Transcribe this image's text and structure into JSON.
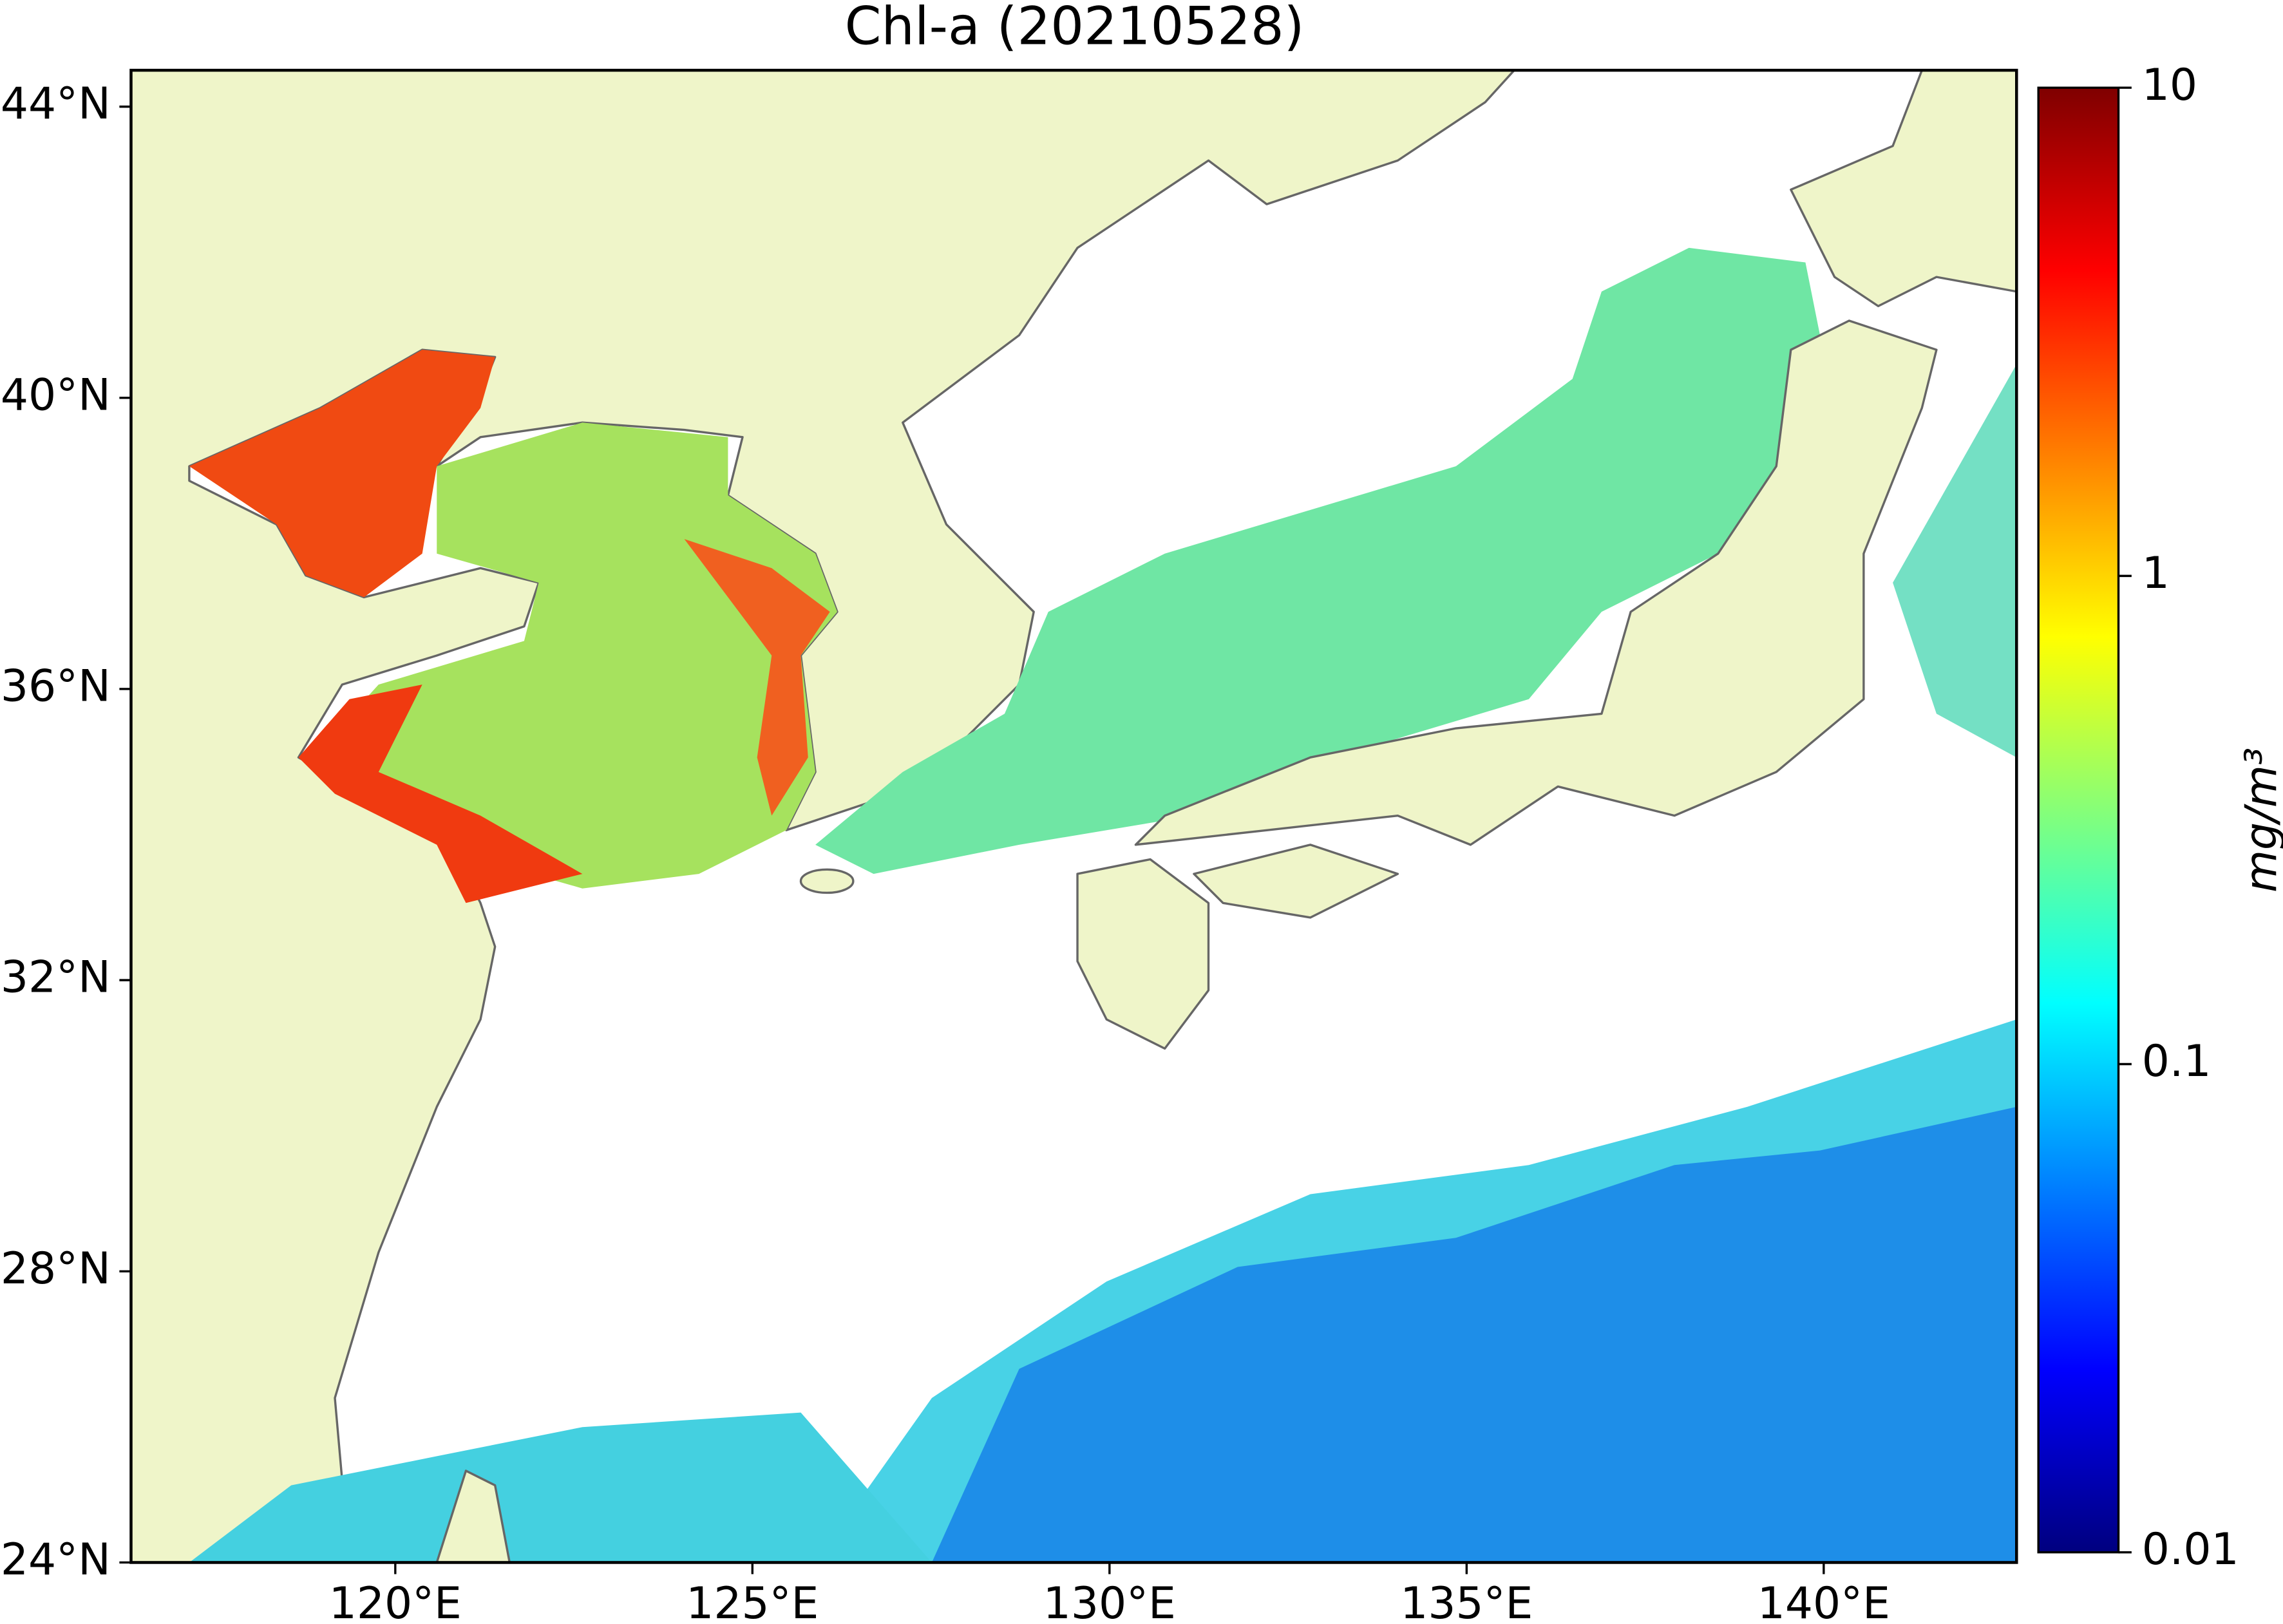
{
  "chart_data": {
    "type": "map",
    "title": "Chl-a (20210528)",
    "xlim": [
      116.3,
      142.7
    ],
    "ylim": [
      24,
      44.5
    ],
    "xticks": [
      {
        "value": 120,
        "label": "120°E"
      },
      {
        "value": 125,
        "label": "125°E"
      },
      {
        "value": 130,
        "label": "130°E"
      },
      {
        "value": 135,
        "label": "135°E"
      },
      {
        "value": 140,
        "label": "140°E"
      }
    ],
    "yticks": [
      {
        "value": 24,
        "label": "24°N"
      },
      {
        "value": 28,
        "label": "28°N"
      },
      {
        "value": 32,
        "label": "32°N"
      },
      {
        "value": 36,
        "label": "36°N"
      },
      {
        "value": 40,
        "label": "40°N"
      },
      {
        "value": 44,
        "label": "44°N"
      }
    ],
    "colorbar": {
      "label": "mg/m³",
      "log_scale": true,
      "lim": [
        0.01,
        10
      ],
      "ticks": [
        0.01,
        0.1,
        1,
        10
      ],
      "colors": [
        "#00007f",
        "#0000ff",
        "#007fff",
        "#00ffff",
        "#7fff7f",
        "#ffff00",
        "#ff7f00",
        "#ff0000",
        "#7f0000"
      ]
    }
  }
}
